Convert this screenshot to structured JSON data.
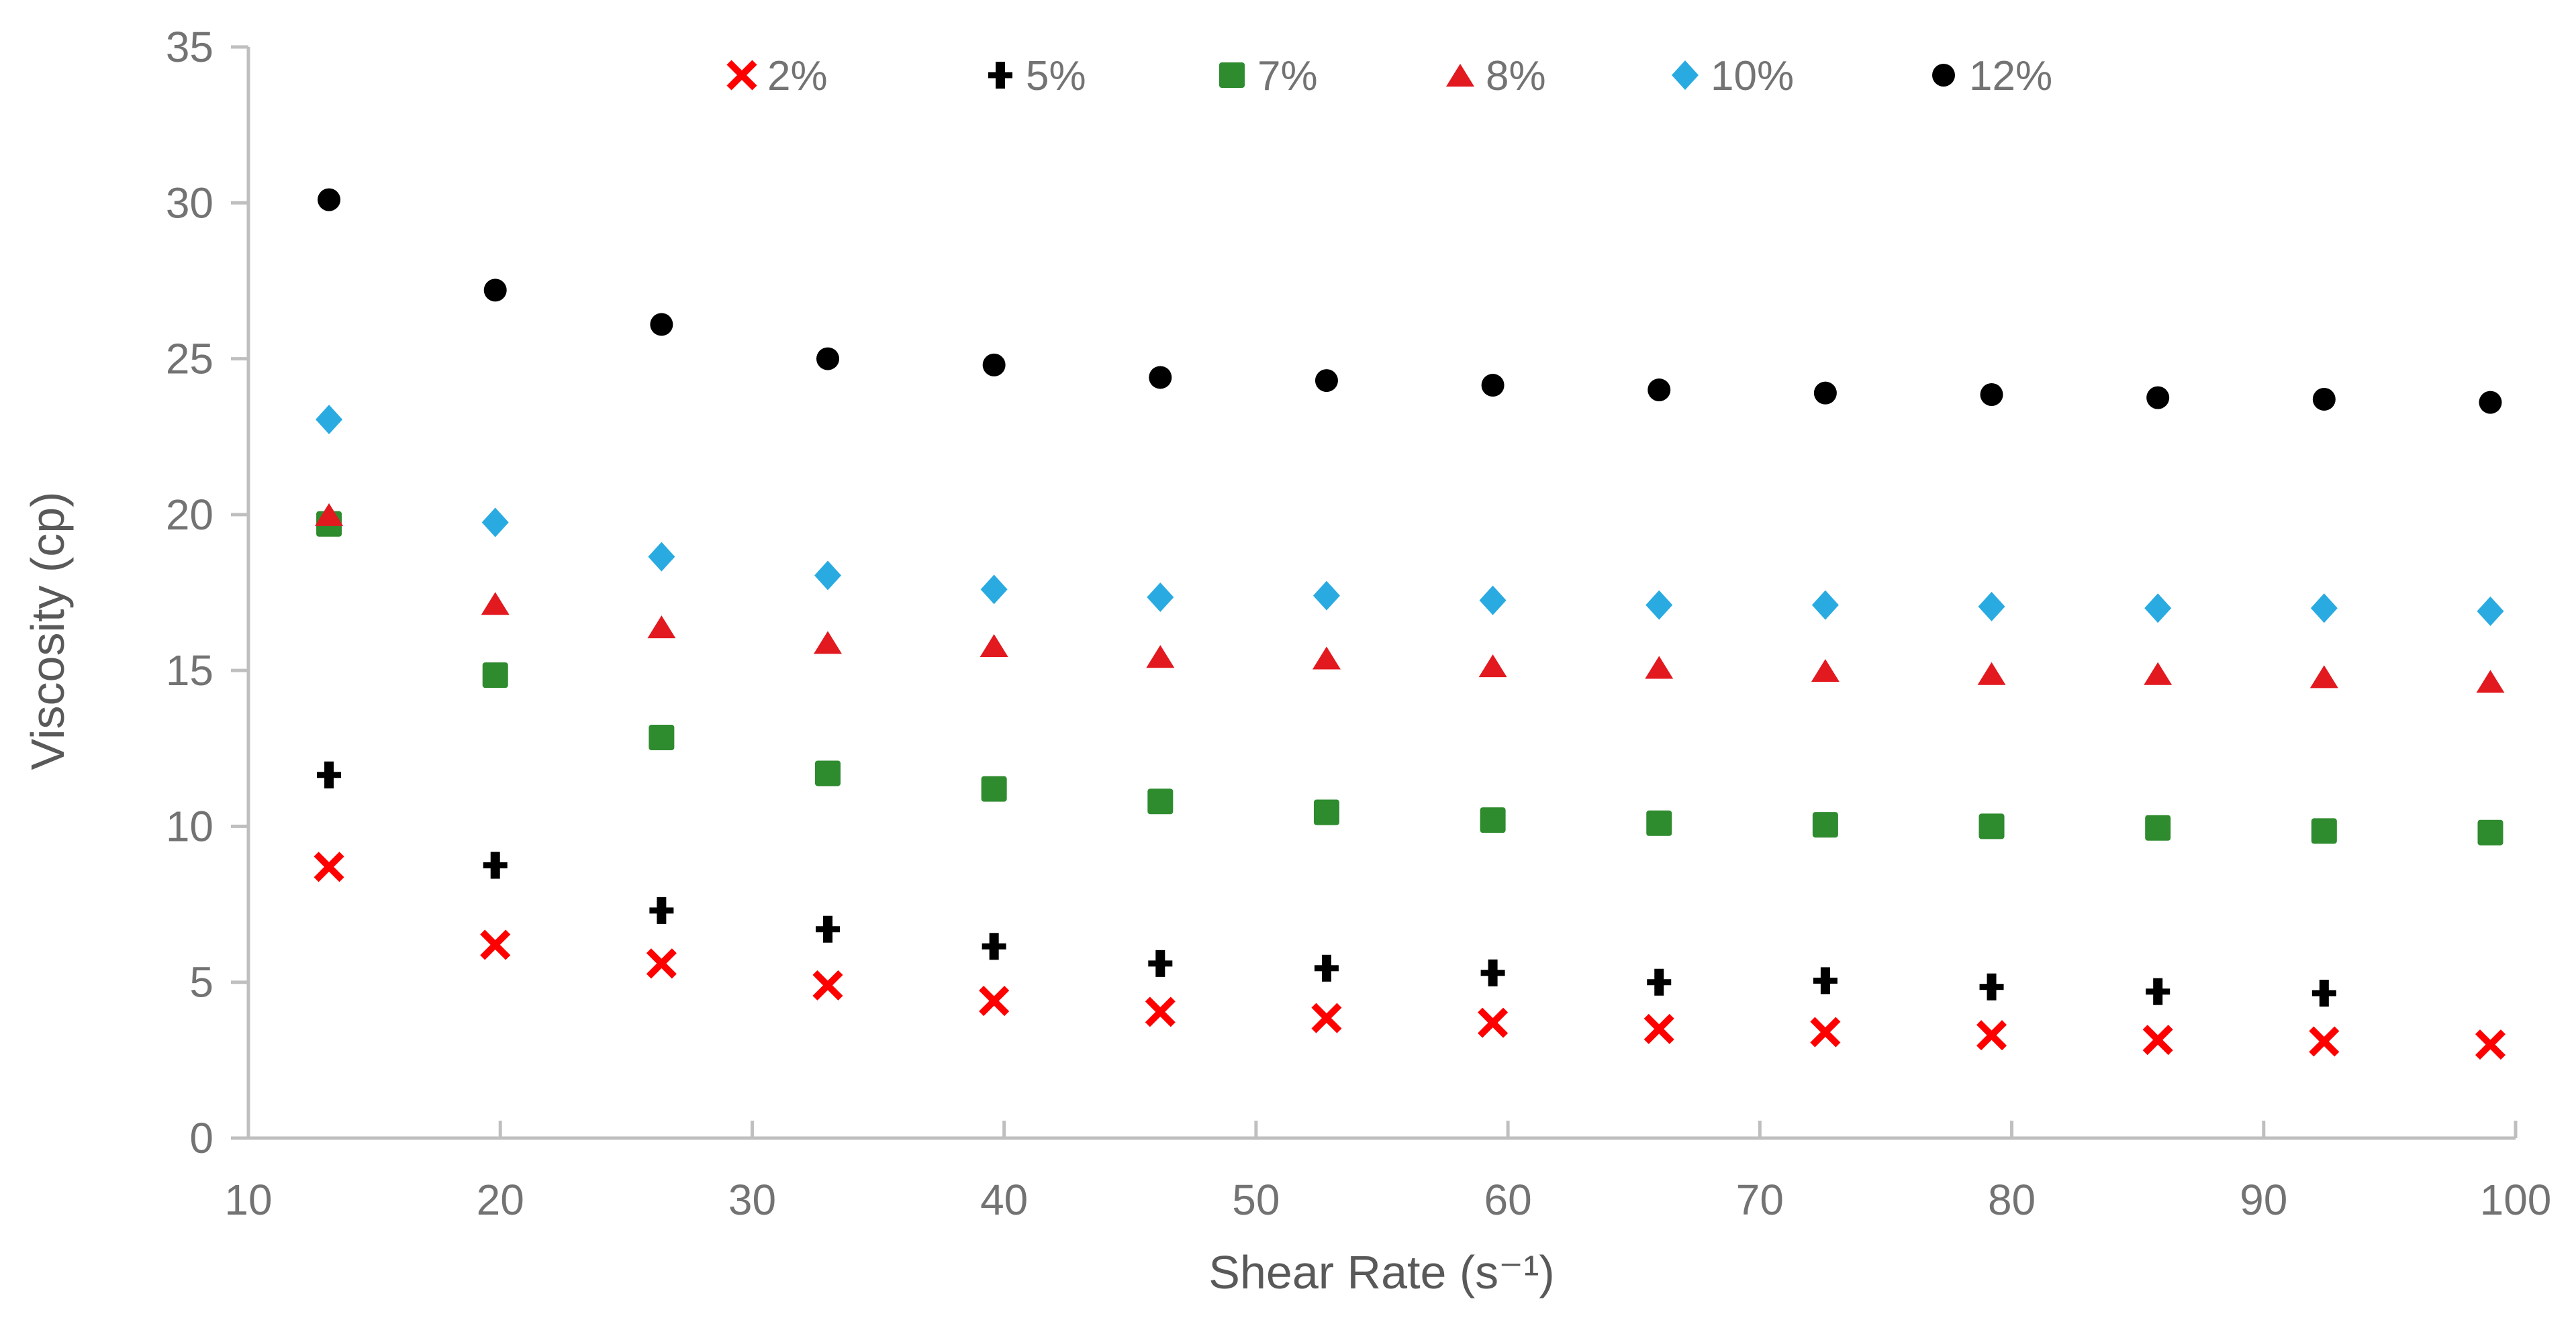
{
  "chart_data": {
    "type": "scatter",
    "title": "",
    "xlabel": "Shear Rate (s⁻¹)",
    "ylabel": "Viscosity (cp)",
    "xlim": [
      10,
      100
    ],
    "ylim": [
      0,
      35
    ],
    "x_ticks": [
      10,
      20,
      30,
      40,
      50,
      60,
      70,
      80,
      90,
      100
    ],
    "y_ticks": [
      0,
      5,
      10,
      15,
      20,
      25,
      30,
      35
    ],
    "grid": false,
    "legend_position": "top-center",
    "axis_color": "#BFBFBF",
    "tick_label_color": "#737373",
    "x": [
      13.2,
      19.8,
      26.4,
      33.0,
      39.6,
      46.2,
      52.8,
      59.4,
      66.0,
      72.6,
      79.2,
      85.8,
      92.4,
      99.0
    ],
    "series": [
      {
        "name": "2%",
        "marker": "x-cross",
        "color": "#FF0000",
        "values": [
          8.7,
          6.2,
          5.6,
          4.9,
          4.4,
          4.05,
          3.85,
          3.7,
          3.5,
          3.4,
          3.3,
          3.15,
          3.1,
          3.0
        ]
      },
      {
        "name": "5%",
        "marker": "plus",
        "color": "#000000",
        "values": [
          11.65,
          8.75,
          7.3,
          6.7,
          6.15,
          5.6,
          5.45,
          5.3,
          5.0,
          5.05,
          4.85,
          4.7,
          4.65,
          null
        ]
      },
      {
        "name": "7%",
        "marker": "square",
        "color": "#2E8B2E",
        "values": [
          19.7,
          14.85,
          12.85,
          11.7,
          11.2,
          10.8,
          10.45,
          10.2,
          10.1,
          10.05,
          10.0,
          9.95,
          9.85,
          9.8
        ]
      },
      {
        "name": "8%",
        "marker": "triangle",
        "color": "#E2191F",
        "values": [
          20.0,
          17.15,
          16.4,
          15.9,
          15.8,
          15.45,
          15.4,
          15.15,
          15.1,
          15.0,
          14.9,
          14.9,
          14.8,
          14.65
        ]
      },
      {
        "name": "10%",
        "marker": "diamond",
        "color": "#29ABE2",
        "values": [
          23.05,
          19.75,
          18.65,
          18.05,
          17.6,
          17.35,
          17.4,
          17.25,
          17.1,
          17.1,
          17.05,
          17.0,
          17.0,
          16.9
        ]
      },
      {
        "name": "12%",
        "marker": "circle",
        "color": "#000000",
        "values": [
          30.1,
          27.2,
          26.1,
          25.0,
          24.8,
          24.4,
          24.3,
          24.15,
          24.0,
          23.9,
          23.85,
          23.75,
          23.7,
          23.6
        ]
      }
    ]
  }
}
